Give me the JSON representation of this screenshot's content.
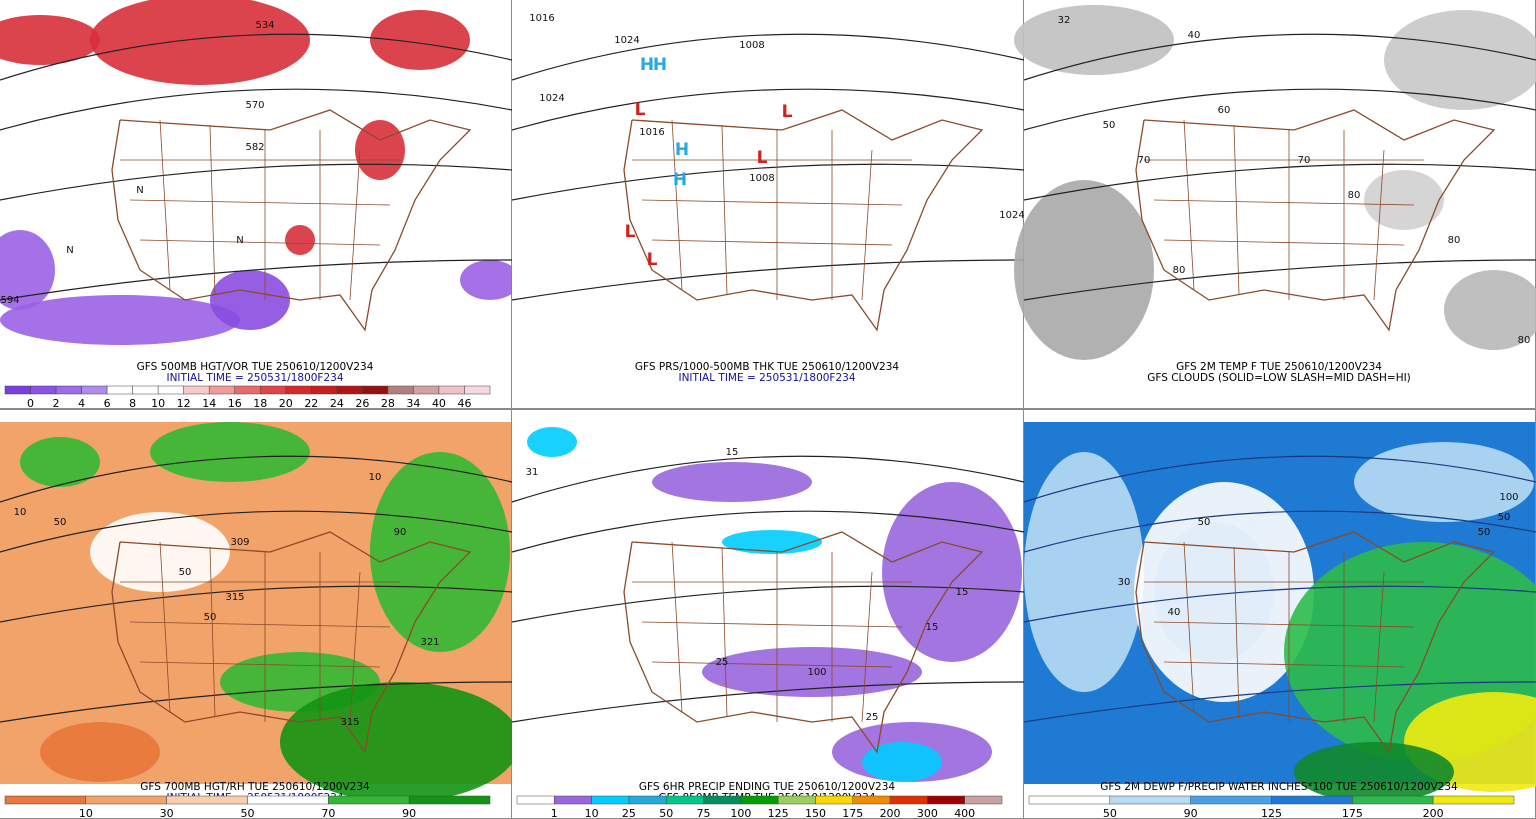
{
  "panels": [
    {
      "captions": [
        "GFS 500MB HGT/VOR TUE 250610/1200V234",
        "INITIAL TIME = 250531/1800F234"
      ],
      "map_labels": [
        "534",
        "570",
        "582",
        "594",
        "N",
        "N",
        "N"
      ],
      "colorbar": {
        "labels": [
          0,
          2,
          4,
          6,
          8,
          10,
          12,
          14,
          16,
          18,
          20,
          22,
          24,
          26,
          28,
          34,
          40,
          46
        ],
        "colors": [
          "#7a3ee0",
          "#8b52e6",
          "#9d6aea",
          "#b08cee",
          "#ffffff",
          "#ffffff",
          "#ffffff",
          "#f7c9c9",
          "#f09a9a",
          "#e86b6b",
          "#e04545",
          "#d62a2a",
          "#c81e1e",
          "#b01515",
          "#951010",
          "#b08080",
          "#d6a0a0",
          "#f0c0c8",
          "#f8d8e0"
        ]
      }
    },
    {
      "captions": [
        "GFS PRS/1000-500MB THK TUE 250610/1200V234",
        "INITIAL TIME = 250531/1800F234"
      ],
      "map_labels": [
        "1016",
        "1024",
        "1024",
        "1008",
        "1016",
        "1008",
        "1024",
        "H",
        "H",
        "H",
        "H",
        "L",
        "L",
        "L",
        "L",
        "L"
      ]
    },
    {
      "captions": [
        "GFS 2M TEMP F TUE 250610/1200V234",
        "GFS CLOUDS (SOLID=LOW SLASH=MID DASH=HI)"
      ],
      "map_labels": [
        "32",
        "40",
        "50",
        "60",
        "70",
        "80",
        "70",
        "80",
        "80",
        "80"
      ]
    },
    {
      "captions": [
        "GFS 700MB HGT/RH TUE 250610/1200V234",
        "INITIAL TIME = 250531/1800F234"
      ],
      "map_labels": [
        "10",
        "50",
        "50",
        "315",
        "309",
        "321",
        "90",
        "10",
        "50",
        "315"
      ],
      "colorbar": {
        "labels": [
          10,
          30,
          50,
          70,
          90
        ],
        "colors": [
          "#e8773a",
          "#f2a36a",
          "#f8cfae",
          "#ffffff",
          "#33b833",
          "#139413"
        ]
      }
    },
    {
      "captions": [
        "GFS 6HR PRECIP ENDING TUE 250610/1200V234",
        "GFS 850MB TEMP TUE 250610/1200V234"
      ],
      "map_labels": [
        "31",
        "15",
        "15",
        "25",
        "100",
        "25",
        "15"
      ],
      "colorbar": {
        "labels": [
          1,
          10,
          25,
          50,
          75,
          100,
          125,
          150,
          175,
          200,
          300,
          400
        ],
        "colors": [
          "#ffffff",
          "#9966dd",
          "#00ccff",
          "#22aadd",
          "#00c88c",
          "#009060",
          "#00a000",
          "#9ad05a",
          "#ffd700",
          "#f08c00",
          "#e03000",
          "#a00000",
          "#c8a0a0"
        ]
      }
    },
    {
      "captions": [
        "GFS 2M DEWP F/PRECIP WATER INCHES*100 TUE 250610/1200V234"
      ],
      "map_labels": [
        "30",
        "50",
        "40",
        "50",
        "100",
        "50"
      ],
      "colorbar": {
        "labels": [
          50,
          90,
          125,
          175,
          200
        ],
        "colors": [
          "#ffffff",
          "#b8dcf4",
          "#4aa0e6",
          "#1e7ad2",
          "#2cbb4a",
          "#f0ea10"
        ]
      }
    }
  ]
}
